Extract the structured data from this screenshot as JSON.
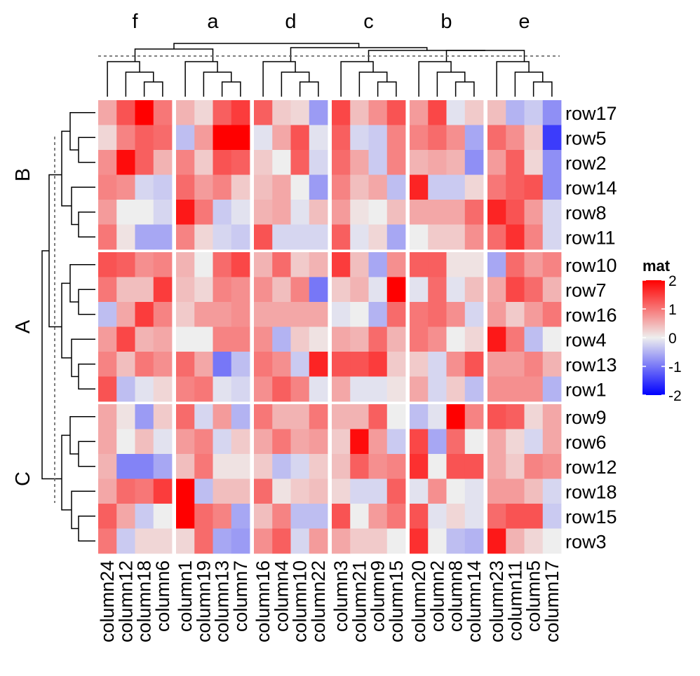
{
  "chart_data": {
    "type": "heatmap",
    "legend": {
      "title": "mat",
      "ticks": [
        2,
        1,
        0,
        -1,
        -2
      ],
      "range": [
        -2,
        2
      ],
      "placement": "right"
    },
    "color_scale": {
      "low": "#0000ff",
      "mid": "#eeeeee",
      "high": "#ff0000"
    },
    "column_slices": [
      {
        "name": "f",
        "columns": [
          "column24",
          "column12",
          "column18",
          "column6"
        ]
      },
      {
        "name": "a",
        "columns": [
          "column1",
          "column19",
          "column13",
          "column7"
        ]
      },
      {
        "name": "d",
        "columns": [
          "column16",
          "column4",
          "column10",
          "column22"
        ]
      },
      {
        "name": "c",
        "columns": [
          "column3",
          "column21",
          "column9",
          "column15"
        ]
      },
      {
        "name": "b",
        "columns": [
          "column20",
          "column2",
          "column8",
          "column14"
        ]
      },
      {
        "name": "e",
        "columns": [
          "column23",
          "column11",
          "column5",
          "column17"
        ]
      }
    ],
    "row_slices": [
      {
        "name": "B",
        "rows": [
          "row17",
          "row5",
          "row2",
          "row14",
          "row8",
          "row11"
        ]
      },
      {
        "name": "A",
        "rows": [
          "row10",
          "row7",
          "row16",
          "row4",
          "row13",
          "row1"
        ]
      },
      {
        "name": "C",
        "rows": [
          "row9",
          "row6",
          "row12",
          "row18",
          "row15",
          "row3"
        ]
      }
    ],
    "values": [
      [
        0.6,
        1.3,
        2.1,
        1.0,
        0.5,
        0.2,
        1.2,
        1.5,
        1.2,
        0.3,
        0.2,
        -0.7,
        1.4,
        0.4,
        0.8,
        1.3,
        0.7,
        1.4,
        -0.1,
        0.3,
        0.4,
        -0.5,
        -0.3,
        -0.8
      ],
      [
        0.2,
        0.9,
        1.2,
        1.1,
        -0.4,
        0.7,
        2.0,
        2.0,
        -0.1,
        0.6,
        1.3,
        -0.1,
        1.2,
        -0.2,
        -0.3,
        0.9,
        0.9,
        1.1,
        0.8,
        -0.6,
        1.1,
        0.8,
        0.3,
        -1.5
      ],
      [
        0.8,
        1.9,
        1.2,
        0.5,
        0.9,
        0.3,
        1.3,
        1.2,
        0.3,
        0.0,
        1.2,
        -0.2,
        1.1,
        0.6,
        -0.3,
        0.9,
        0.5,
        0.6,
        0.5,
        -0.8,
        0.7,
        1.2,
        0.2,
        -0.8
      ],
      [
        0.9,
        0.8,
        -0.2,
        -0.3,
        1.1,
        0.7,
        0.9,
        0.3,
        0.4,
        0.6,
        0.0,
        -0.7,
        0.9,
        0.4,
        0.6,
        -0.4,
        1.7,
        -0.3,
        -0.3,
        0.2,
        1.0,
        1.2,
        1.3,
        -0.8
      ],
      [
        0.7,
        0.0,
        0.0,
        -0.2,
        1.8,
        1.0,
        -0.3,
        -0.1,
        0.5,
        0.6,
        -0.1,
        0.4,
        0.7,
        0.1,
        0.0,
        0.4,
        0.6,
        0.6,
        0.6,
        1.1,
        1.7,
        1.3,
        0.7,
        -0.2
      ],
      [
        1.0,
        0.1,
        -0.6,
        -0.6,
        0.9,
        0.2,
        -0.2,
        -0.3,
        1.3,
        -0.2,
        -0.2,
        -0.2,
        1.2,
        -0.1,
        0.2,
        -0.6,
        0.0,
        0.3,
        0.3,
        0.8,
        1.1,
        1.6,
        0.9,
        -0.2
      ]
    ],
    "values_A": [
      [
        1.3,
        1.2,
        0.8,
        0.9,
        0.5,
        0.0,
        1.1,
        1.4,
        0.5,
        1.1,
        0.3,
        0.5,
        1.5,
        0.4,
        -0.6,
        0.8,
        1.2,
        1.2,
        0.1,
        0.1,
        -0.6,
        1.1,
        0.7,
        0.9
      ],
      [
        1.0,
        0.4,
        0.4,
        1.5,
        0.4,
        0.2,
        0.9,
        0.8,
        0.8,
        0.4,
        0.9,
        -1.0,
        0.3,
        0.5,
        -0.1,
        2.1,
        -0.1,
        1.1,
        -0.1,
        0.4,
        0.6,
        1.4,
        1.1,
        0.5
      ],
      [
        -0.4,
        0.6,
        1.5,
        0.9,
        0.3,
        0.7,
        0.7,
        0.8,
        0.6,
        0.6,
        0.6,
        0.6,
        -0.1,
        0.0,
        -0.5,
        1.1,
        1.0,
        1.1,
        0.8,
        -0.2,
        0.7,
        0.3,
        0.7,
        1.0
      ],
      [
        0.7,
        1.4,
        0.5,
        0.6,
        0.0,
        0.0,
        0.9,
        0.9,
        0.8,
        -0.5,
        0.3,
        0.1,
        0.6,
        0.5,
        1.1,
        0.5,
        1.0,
        0.8,
        0.0,
        0.2,
        1.8,
        1.0,
        -0.4,
        0.0
      ],
      [
        0.9,
        0.4,
        1.0,
        0.8,
        1.1,
        0.6,
        -1.0,
        -0.4,
        1.0,
        0.8,
        -0.3,
        1.7,
        1.3,
        1.3,
        1.5,
        0.3,
        0.3,
        -0.2,
        0.8,
        1.3,
        0.7,
        0.7,
        0.9,
        0.5
      ],
      [
        1.3,
        -0.4,
        -0.1,
        0.2,
        0.9,
        1.0,
        -0.1,
        -0.2,
        0.8,
        1.2,
        0.9,
        -0.1,
        0.6,
        -0.1,
        -0.1,
        0.1,
        0.6,
        -0.2,
        0.3,
        -0.4,
        0.8,
        0.8,
        0.8,
        -0.5
      ]
    ],
    "values_C": [
      [
        0.6,
        0.1,
        -0.7,
        0.3,
        1.1,
        -0.2,
        0.7,
        -0.5,
        1.0,
        0.5,
        0.5,
        1.0,
        0.5,
        0.5,
        1.2,
        0.0,
        -0.4,
        -0.1,
        2.0,
        0.9,
        1.3,
        1.2,
        0.2,
        0.6
      ],
      [
        0.6,
        0.0,
        0.4,
        -0.1,
        0.7,
        0.9,
        -0.2,
        0.3,
        0.6,
        1.0,
        0.6,
        0.7,
        0.3,
        1.9,
        0.7,
        -0.3,
        1.4,
        -0.6,
        1.1,
        0.0,
        0.6,
        0.2,
        -0.2,
        0.6
      ],
      [
        0.5,
        -0.9,
        -0.9,
        -0.6,
        0.4,
        1.0,
        0.1,
        0.1,
        0.3,
        -0.4,
        -0.2,
        0.3,
        0.4,
        1.2,
        0.8,
        0.9,
        1.6,
        0.0,
        1.3,
        1.3,
        0.6,
        0.3,
        0.9,
        0.8
      ],
      [
        0.6,
        1.1,
        1.0,
        1.5,
        2.0,
        -0.4,
        0.4,
        0.4,
        1.1,
        0.1,
        0.3,
        0.4,
        0.2,
        -0.2,
        -0.2,
        1.2,
        -0.1,
        0.8,
        0.0,
        -0.1,
        0.7,
        0.7,
        0.4,
        -0.2
      ],
      [
        1.2,
        0.6,
        -0.3,
        0.0,
        2.0,
        1.1,
        0.9,
        -0.6,
        0.4,
        0.9,
        -0.4,
        -0.4,
        1.3,
        0.0,
        0.7,
        1.0,
        1.3,
        -0.1,
        0.2,
        -0.1,
        1.1,
        1.3,
        1.3,
        -0.3
      ],
      [
        1.0,
        -0.3,
        0.2,
        0.2,
        0.2,
        1.1,
        -0.6,
        -0.7,
        0.8,
        1.2,
        -0.2,
        0.7,
        0.6,
        0.3,
        0.3,
        0.0,
        1.6,
        0.0,
        -0.4,
        -0.5,
        1.8,
        0.5,
        0.2,
        0.0
      ]
    ]
  }
}
